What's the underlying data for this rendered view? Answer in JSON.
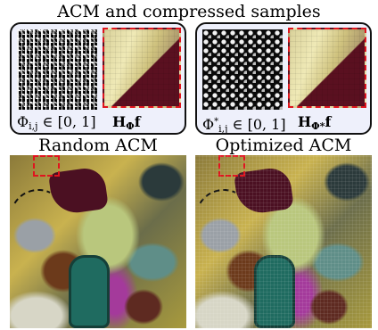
{
  "figure": {
    "title": "ACM and compressed samples",
    "panels": [
      {
        "mask_caption": "Φ",
        "mask_sub": "i,j",
        "mask_range": " ∈ [0, 1]",
        "sample_caption": "H",
        "sample_sub": "Φ",
        "sample_suffix": "f"
      },
      {
        "mask_caption": "Φ",
        "mask_sup": "*",
        "mask_sub": "i,j",
        "mask_range": " ∈ [0, 1]",
        "sample_caption": "H",
        "sample_sub": "Φ*",
        "sample_suffix": "f"
      }
    ],
    "reconstructions": {
      "left_label": "Random ACM",
      "right_label": "Optimized ACM"
    }
  }
}
